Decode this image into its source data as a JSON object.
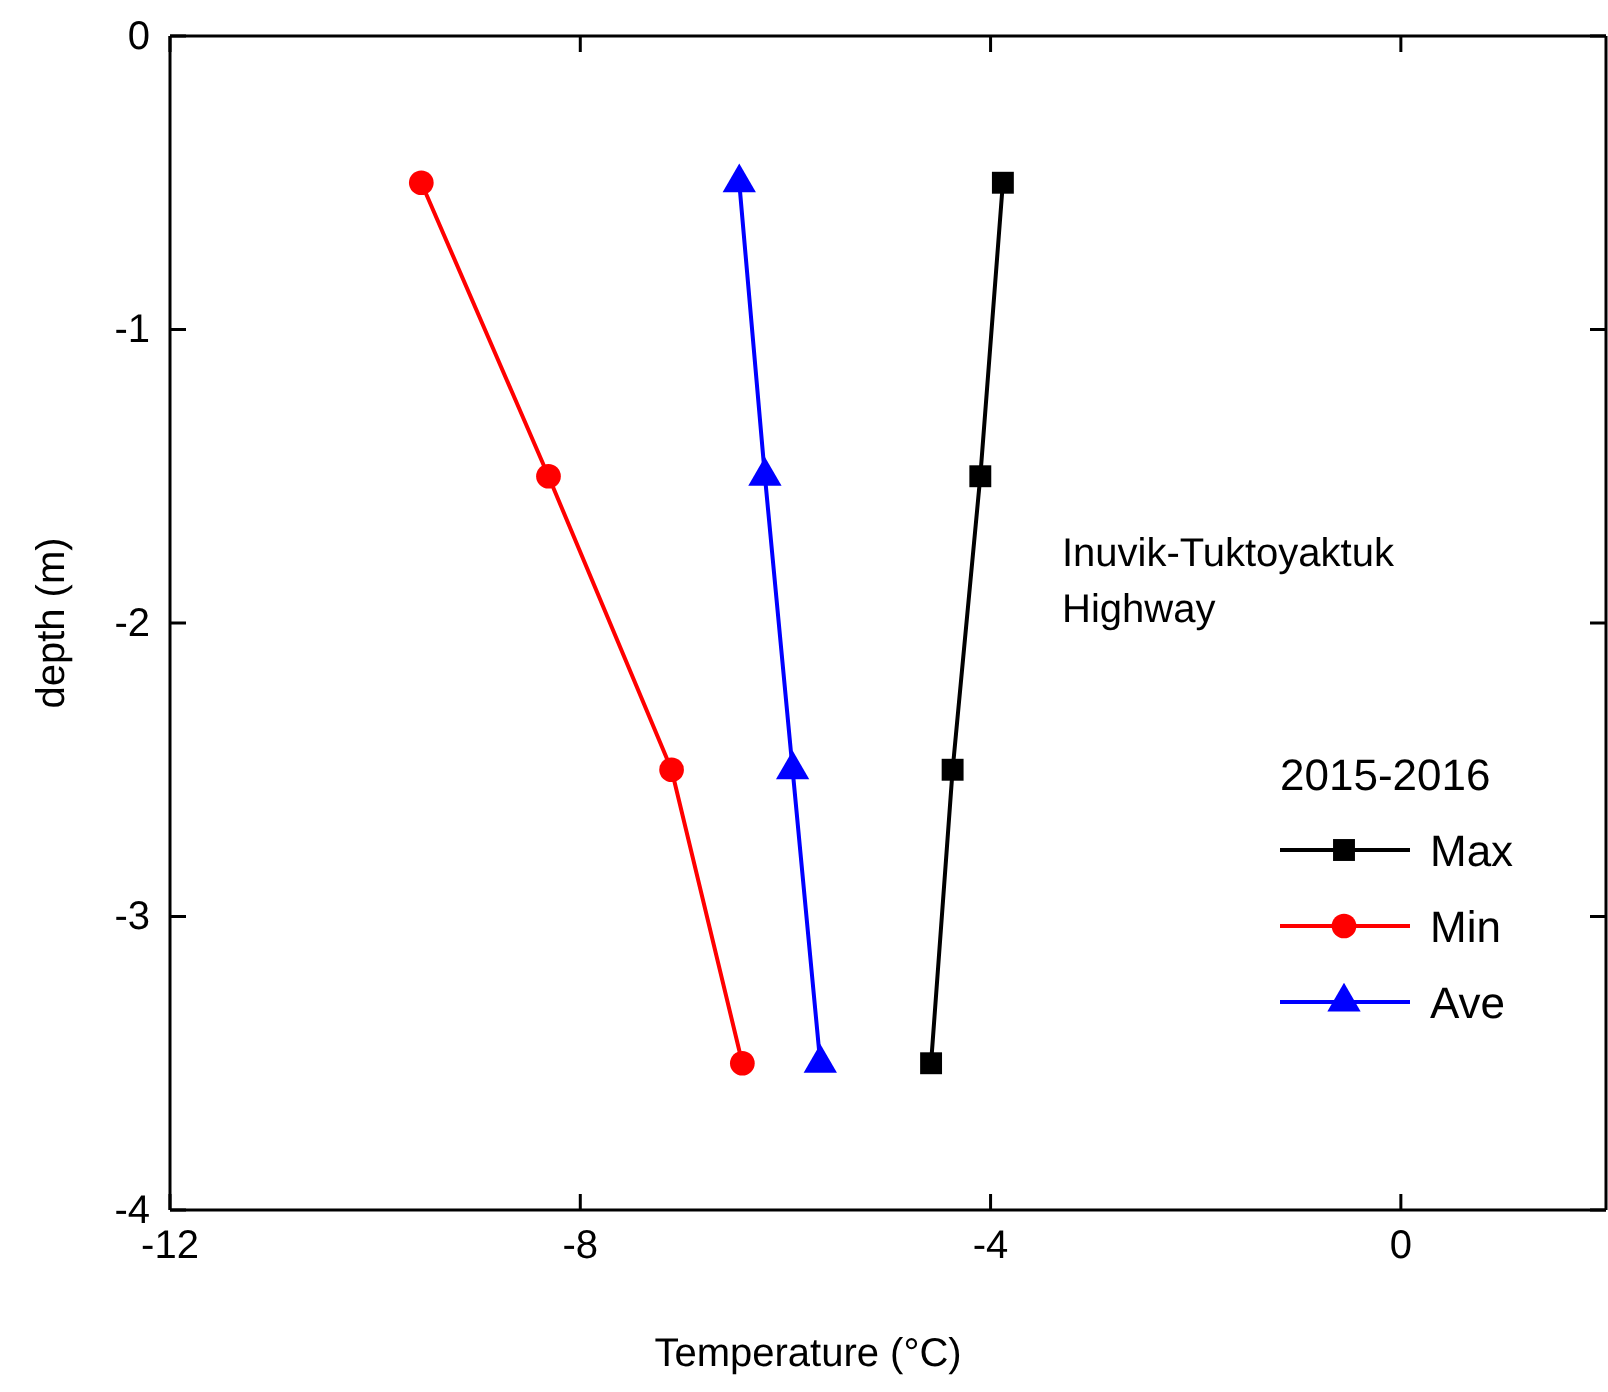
{
  "chart_data": {
    "type": "line",
    "xlabel": "Temperature (°C)",
    "ylabel": "depth (m)",
    "legend_title": "2015-2016",
    "legend": "right",
    "line_style": "solid",
    "annotations": [
      "Inuvik-Tuktoyaktuk\nHighway"
    ],
    "xlim": [
      -12,
      2
    ],
    "xticks": [
      -12,
      -8,
      -4,
      0
    ],
    "ylim": [
      -4,
      0
    ],
    "yticks": [
      -4,
      -3,
      -2,
      -1,
      0
    ],
    "grid": false,
    "series": [
      {
        "name": "Max",
        "color": "#000000",
        "marker": "square",
        "x": [
          -3.88,
          -4.1,
          -4.37,
          -4.58
        ],
        "values": [
          -0.5,
          -1.5,
          -2.5,
          -3.5
        ]
      },
      {
        "name": "Min",
        "color": "#ff0000",
        "marker": "circle",
        "x": [
          -9.55,
          -8.31,
          -7.11,
          -6.42
        ],
        "values": [
          -0.5,
          -1.5,
          -2.5,
          -3.5
        ]
      },
      {
        "name": "Ave",
        "color": "#0000ff",
        "marker": "triangle",
        "x": [
          -6.45,
          -6.2,
          -5.93,
          -5.66
        ],
        "values": [
          -0.5,
          -1.5,
          -2.5,
          -3.5
        ]
      }
    ]
  }
}
